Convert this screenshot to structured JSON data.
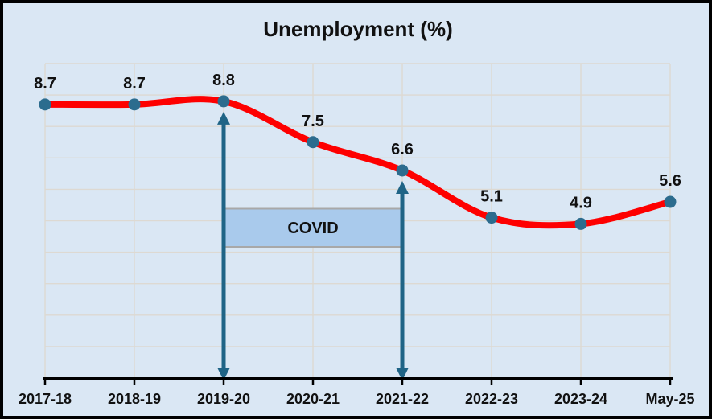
{
  "chart_data": {
    "type": "line",
    "title": "Unemployment (%)",
    "categories": [
      "2017-18",
      "2018-19",
      "2019-20",
      "2020-21",
      "2021-22",
      "2022-23",
      "2023-24",
      "May-25"
    ],
    "values": [
      8.7,
      8.7,
      8.8,
      7.5,
      6.6,
      5.1,
      4.9,
      5.6
    ],
    "data_labels": [
      "8.7",
      "8.7",
      "8.8",
      "7.5",
      "6.6",
      "5.1",
      "4.9",
      "5.6"
    ],
    "xlabel": "",
    "ylabel": "",
    "ylim": [
      0,
      10
    ],
    "y_gridline_step": 1,
    "grid": true,
    "legend": "none",
    "smooth_line": true,
    "annotation": {
      "label": "COVID",
      "from_category": "2019-20",
      "to_category": "2021-22"
    },
    "colors": {
      "background": "#dae7f4",
      "outer_border": "#000000",
      "gridline": "#ddd9d2",
      "axis": "#000000",
      "line": "#fe0000",
      "marker": "#2c6c8e",
      "arrow": "#1f6486",
      "annotation_fill": "#a9caec",
      "annotation_border": "#a8a8a8",
      "text": "#111111"
    }
  }
}
